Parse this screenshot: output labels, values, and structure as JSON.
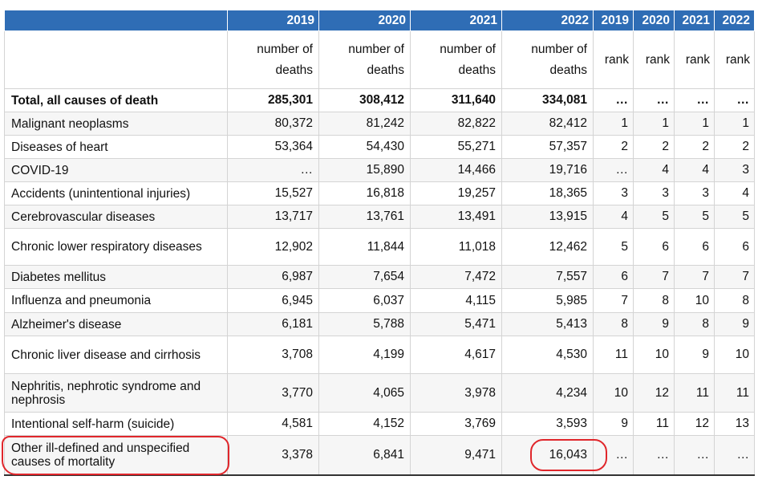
{
  "table": {
    "years": [
      "2019",
      "2020",
      "2021",
      "2022",
      "2019",
      "2020",
      "2021",
      "2022"
    ],
    "measures": [
      "number of deaths",
      "number of deaths",
      "number of deaths",
      "number of deaths",
      "rank",
      "rank",
      "rank",
      "rank"
    ],
    "rows": [
      [
        "Total, all causes of death",
        "285,301",
        "308,412",
        "311,640",
        "334,081",
        "…",
        "…",
        "…",
        "…"
      ],
      [
        "Malignant neoplasms",
        "80,372",
        "81,242",
        "82,822",
        "82,412",
        "1",
        "1",
        "1",
        "1"
      ],
      [
        "Diseases of heart",
        "53,364",
        "54,430",
        "55,271",
        "57,357",
        "2",
        "2",
        "2",
        "2"
      ],
      [
        "COVID-19",
        "…",
        "15,890",
        "14,466",
        "19,716",
        "…",
        "4",
        "4",
        "3"
      ],
      [
        "Accidents (unintentional injuries)",
        "15,527",
        "16,818",
        "19,257",
        "18,365",
        "3",
        "3",
        "3",
        "4"
      ],
      [
        "Cerebrovascular diseases",
        "13,717",
        "13,761",
        "13,491",
        "13,915",
        "4",
        "5",
        "5",
        "5"
      ],
      [
        "Chronic lower respiratory diseases",
        "12,902",
        "11,844",
        "11,018",
        "12,462",
        "5",
        "6",
        "6",
        "6"
      ],
      [
        "Diabetes mellitus",
        "6,987",
        "7,654",
        "7,472",
        "7,557",
        "6",
        "7",
        "7",
        "7"
      ],
      [
        "Influenza and pneumonia",
        "6,945",
        "6,037",
        "4,115",
        "5,985",
        "7",
        "8",
        "10",
        "8"
      ],
      [
        "Alzheimer's disease",
        "6,181",
        "5,788",
        "5,471",
        "5,413",
        "8",
        "9",
        "8",
        "9"
      ],
      [
        "Chronic liver disease and cirrhosis",
        "3,708",
        "4,199",
        "4,617",
        "4,530",
        "11",
        "10",
        "9",
        "10"
      ],
      [
        "Nephritis, nephrotic syndrome and nephrosis",
        "3,770",
        "4,065",
        "3,978",
        "4,234",
        "10",
        "12",
        "11",
        "11"
      ],
      [
        "Intentional self-harm (suicide)",
        "4,581",
        "4,152",
        "3,769",
        "3,593",
        "9",
        "11",
        "12",
        "13"
      ],
      [
        "Other ill-defined and unspecified causes of mortality",
        "3,378",
        "6,841",
        "9,471",
        "16,043",
        "…",
        "…",
        "…",
        "…"
      ]
    ]
  }
}
